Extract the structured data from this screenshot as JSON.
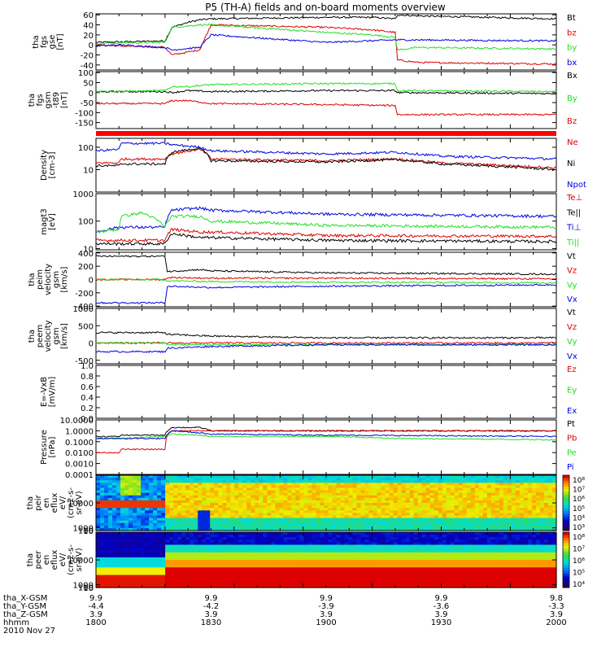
{
  "title": "P5 (TH-A) fields and on-board moments overview",
  "colors": {
    "black": "#000000",
    "red": "#e00000",
    "green": "#20e020",
    "blue": "#0000e0"
  },
  "chart_data": [
    {
      "type": "line",
      "id": "fgs",
      "ylabel": [
        "tha",
        "fgs",
        "gse",
        "[nT]"
      ],
      "ylim": [
        -50,
        62
      ],
      "yticks": [
        "60",
        "40",
        "20",
        "0",
        "-20",
        "-40"
      ],
      "ytickvals": [
        60,
        40,
        20,
        0,
        -20,
        -40
      ],
      "series": [
        {
          "name": "Bt",
          "color": "black",
          "x": [
            1800,
            1810,
            1830,
            1833,
            1840,
            1845,
            1850,
            1900,
            1920,
            1930,
            1931,
            1940,
            2000
          ],
          "y": [
            5,
            6,
            8,
            35,
            45,
            50,
            52,
            55,
            55,
            52,
            60,
            58,
            52
          ]
        },
        {
          "name": "bz",
          "color": "red",
          "x": [
            1800,
            1810,
            1830,
            1833,
            1845,
            1850,
            1900,
            1920,
            1930,
            1931,
            1940,
            2000
          ],
          "y": [
            0,
            -2,
            -5,
            -20,
            -10,
            40,
            35,
            30,
            25,
            -30,
            -35,
            -38
          ]
        },
        {
          "name": "by",
          "color": "green",
          "x": [
            1800,
            1810,
            1830,
            1833,
            1845,
            1850,
            1900,
            1920,
            1930,
            1931,
            1940,
            2000
          ],
          "y": [
            3,
            4,
            5,
            35,
            40,
            40,
            25,
            20,
            15,
            -10,
            -5,
            -8
          ]
        },
        {
          "name": "bx",
          "color": "blue",
          "x": [
            1800,
            1810,
            1830,
            1833,
            1845,
            1850,
            1900,
            1930,
            1940,
            2000
          ],
          "y": [
            -2,
            0,
            -5,
            -10,
            -5,
            20,
            5,
            10,
            10,
            8
          ]
        }
      ]
    },
    {
      "type": "line",
      "id": "fgs_gsm",
      "ylabel": [
        "tha",
        "fgs",
        "gsm",
        "-t89",
        "[nT]"
      ],
      "ylim": [
        -180,
        105
      ],
      "yticks": [
        "100",
        "50",
        "0",
        "-50",
        "-100",
        "-150"
      ],
      "ytickvals": [
        100,
        50,
        0,
        -50,
        -100,
        -150
      ],
      "series": [
        {
          "name": "Bx",
          "color": "black",
          "x": [
            1800,
            1830,
            1833,
            1840,
            1850,
            1900,
            1930,
            1931,
            2000
          ],
          "y": [
            5,
            5,
            0,
            10,
            5,
            10,
            10,
            0,
            -5
          ]
        },
        {
          "name": "By",
          "color": "green",
          "x": [
            1800,
            1830,
            1833,
            1840,
            1850,
            1900,
            1930,
            1931,
            2000
          ],
          "y": [
            5,
            10,
            30,
            30,
            40,
            45,
            45,
            10,
            5
          ]
        },
        {
          "name": "Bz",
          "color": "red",
          "x": [
            1800,
            1830,
            1833,
            1840,
            1850,
            1900,
            1930,
            1931,
            2000
          ],
          "y": [
            -55,
            -55,
            -40,
            -40,
            -55,
            -60,
            -65,
            -110,
            -110
          ]
        }
      ]
    },
    {
      "type": "line",
      "id": "density",
      "log": true,
      "ylabel": [
        "Density",
        "[cm-3]"
      ],
      "ylim": [
        1,
        250
      ],
      "yticks": [
        "100",
        "10"
      ],
      "ytickvals": [
        100,
        10
      ],
      "series": [
        {
          "name": "Ne",
          "color": "red",
          "x": [
            1800,
            1810,
            1811,
            1830,
            1833,
            1845,
            1850,
            1900,
            1930,
            1950,
            2000
          ],
          "y": [
            20,
            20,
            30,
            30,
            50,
            80,
            30,
            25,
            30,
            20,
            12
          ]
        },
        {
          "name": "Ni",
          "color": "black",
          "x": [
            1800,
            1810,
            1811,
            1830,
            1833,
            1845,
            1850,
            1900,
            1930,
            1950,
            2000
          ],
          "y": [
            15,
            15,
            18,
            18,
            60,
            90,
            25,
            22,
            28,
            18,
            10
          ]
        },
        {
          "name": "Npot",
          "color": "blue",
          "x": [
            1800,
            1810,
            1811,
            1830,
            1833,
            1845,
            1850,
            1900,
            1930,
            1950,
            2000
          ],
          "y": [
            70,
            80,
            150,
            150,
            130,
            100,
            70,
            50,
            60,
            40,
            30
          ]
        }
      ]
    },
    {
      "type": "line",
      "id": "temperature",
      "log": true,
      "ylabel": [
        "magt3",
        "[eV]"
      ],
      "ylim": [
        9,
        1000
      ],
      "yticks": [
        "1000",
        "100",
        "10"
      ],
      "ytickvals": [
        1000,
        100,
        10
      ],
      "series": [
        {
          "name": "Te⊥",
          "color": "red",
          "x": [
            1800,
            1810,
            1830,
            1833,
            1845,
            1850,
            1900,
            2000
          ],
          "y": [
            20,
            20,
            20,
            50,
            40,
            40,
            30,
            28
          ]
        },
        {
          "name": "Te||",
          "color": "black",
          "x": [
            1800,
            1810,
            1830,
            1833,
            1845,
            1850,
            1900,
            2000
          ],
          "y": [
            15,
            15,
            15,
            35,
            25,
            25,
            20,
            18
          ]
        },
        {
          "name": "Ti⊥",
          "color": "blue",
          "x": [
            1800,
            1810,
            1830,
            1833,
            1845,
            1850,
            1900,
            2000
          ],
          "y": [
            40,
            60,
            60,
            250,
            300,
            250,
            180,
            150
          ]
        },
        {
          "name": "Ti||",
          "color": "green",
          "x": [
            1800,
            1810,
            1811,
            1820,
            1830,
            1833,
            1845,
            1850,
            1900,
            2000
          ],
          "y": [
            40,
            50,
            150,
            200,
            60,
            150,
            150,
            100,
            70,
            60
          ]
        }
      ]
    },
    {
      "type": "line",
      "id": "peim_velocity",
      "ylabel": [
        "tha",
        "peim",
        "velocity",
        "gsm",
        "[km/s]"
      ],
      "ylim": [
        -410,
        410
      ],
      "yticks": [
        "400",
        "200",
        "0",
        "-200",
        "-400"
      ],
      "ytickvals": [
        400,
        200,
        0,
        -200,
        -400
      ],
      "series": [
        {
          "name": "Vt",
          "color": "black",
          "x": [
            1800,
            1830,
            1831,
            1845,
            1850,
            1900,
            2000
          ],
          "y": [
            350,
            350,
            120,
            150,
            130,
            100,
            80
          ]
        },
        {
          "name": "Vz",
          "color": "red",
          "x": [
            1800,
            1830,
            1831,
            1850,
            1900,
            2000
          ],
          "y": [
            0,
            0,
            30,
            20,
            20,
            10
          ]
        },
        {
          "name": "Vy",
          "color": "green",
          "x": [
            1800,
            1830,
            1831,
            1850,
            1900,
            2000
          ],
          "y": [
            0,
            0,
            -20,
            -30,
            -40,
            -50
          ]
        },
        {
          "name": "Vx",
          "color": "blue",
          "x": [
            1800,
            1830,
            1831,
            1850,
            1900,
            2000
          ],
          "y": [
            -350,
            -350,
            -100,
            -120,
            -100,
            -80
          ]
        }
      ]
    },
    {
      "type": "line",
      "id": "peem_velocity",
      "ylabel": [
        "tha",
        "peem",
        "velocity",
        "gsm",
        "[km/s]"
      ],
      "ylim": [
        -600,
        1000
      ],
      "yticks": [
        "1000",
        "500",
        "0",
        "-500"
      ],
      "ytickvals": [
        1000,
        500,
        0,
        -500
      ],
      "series": [
        {
          "name": "Vt",
          "color": "black",
          "x": [
            1800,
            1830,
            1831,
            1850,
            1900,
            2000
          ],
          "y": [
            300,
            300,
            250,
            200,
            150,
            150
          ]
        },
        {
          "name": "Vz",
          "color": "red",
          "x": [
            1800,
            1830,
            1831,
            2000
          ],
          "y": [
            0,
            0,
            0,
            0
          ]
        },
        {
          "name": "Vy",
          "color": "green",
          "x": [
            1800,
            1830,
            1831,
            2000
          ],
          "y": [
            0,
            0,
            -50,
            -50
          ]
        },
        {
          "name": "Vx",
          "color": "blue",
          "x": [
            1800,
            1830,
            1831,
            1850,
            1900,
            2000
          ],
          "y": [
            -250,
            -250,
            -150,
            -100,
            -50,
            -50
          ]
        }
      ]
    },
    {
      "type": "line",
      "id": "efield",
      "ylabel": [
        "E=-VxB",
        "[mV/m]"
      ],
      "ylim": [
        0,
        1
      ],
      "yticks": [
        "1.0",
        "0.8",
        "0.6",
        "0.4",
        "0.2",
        "0.0"
      ],
      "ytickvals": [
        1,
        0.8,
        0.6,
        0.4,
        0.2,
        0
      ],
      "series": [
        {
          "name": "Ez",
          "color": "red",
          "x": [],
          "y": []
        },
        {
          "name": "Ey",
          "color": "green",
          "x": [],
          "y": []
        },
        {
          "name": "Ex",
          "color": "blue",
          "x": [],
          "y": []
        }
      ]
    },
    {
      "type": "line",
      "id": "pressure",
      "log": true,
      "ylabel": [
        "Pressure",
        "[nPa]"
      ],
      "ylim": [
        0.0001,
        10
      ],
      "yticks": [
        "10.0000",
        "1.0000",
        "0.1000",
        "0.0100",
        "0.0010",
        "0.0001"
      ],
      "ytickvals": [
        10,
        1,
        0.1,
        0.01,
        0.001,
        0.0001
      ],
      "series": [
        {
          "name": "Pt",
          "color": "black",
          "x": [
            1800,
            1810,
            1811,
            1830,
            1833,
            1845,
            1850,
            1900,
            1930,
            2000
          ],
          "y": [
            0.3,
            0.3,
            0.4,
            0.4,
            2,
            2,
            1,
            1,
            1,
            1
          ]
        },
        {
          "name": "Pb",
          "color": "red",
          "x": [
            1800,
            1810,
            1811,
            1830,
            1833,
            1845,
            1850,
            1900,
            1930,
            2000
          ],
          "y": [
            0.01,
            0.01,
            0.02,
            0.02,
            1,
            1,
            1,
            1,
            1,
            1
          ]
        },
        {
          "name": "Pe",
          "color": "green",
          "x": [
            1800,
            1810,
            1811,
            1830,
            1833,
            1845,
            1850,
            1900,
            1930,
            2000
          ],
          "y": [
            0.2,
            0.2,
            0.2,
            0.3,
            0.5,
            0.4,
            0.3,
            0.3,
            0.2,
            0.15
          ]
        },
        {
          "name": "Pi",
          "color": "blue",
          "x": [
            1800,
            1830,
            1833,
            1850,
            1900,
            2000
          ],
          "y": [
            0.2,
            0.2,
            1,
            0.5,
            0.4,
            0.3
          ]
        }
      ]
    },
    {
      "type": "heatmap",
      "id": "peir",
      "ylabel": [
        "tha",
        "peir",
        "en",
        "eflux",
        "eV/",
        "(cm2-s-",
        "sr-eV)"
      ],
      "ylim": [
        10,
        20000
      ],
      "yticks": [
        "10000",
        "1000",
        "100",
        "10"
      ],
      "ytickvals": [
        10000,
        1000,
        100,
        10
      ],
      "colorbar": {
        "ticks": [
          "10⁸",
          "10⁷",
          "10⁶",
          "10⁵",
          "10⁴",
          "10³"
        ]
      }
    },
    {
      "type": "heatmap",
      "id": "peer",
      "ylabel": [
        "tha",
        "peer",
        "en",
        "eflux",
        "eV/",
        "(cm2-s-",
        "sr-eV)"
      ],
      "ylim": [
        10,
        20000
      ],
      "yticks": [
        "10000",
        "1000",
        "100",
        "10"
      ],
      "ytickvals": [
        10000,
        1000,
        100,
        10
      ],
      "colorbar": {
        "ticks": [
          "10⁸",
          "10⁷",
          "10⁶",
          "10⁵",
          "10⁴"
        ]
      }
    }
  ],
  "xaxis": {
    "xlim": [
      1800,
      2000
    ],
    "rows": [
      {
        "label": "tha_X-GSM",
        "values": [
          "9.9",
          "9.9",
          "9.9",
          "9.9",
          "9.8"
        ]
      },
      {
        "label": "tha_Y-GSM",
        "values": [
          "-4.4",
          "-4.2",
          "-3.9",
          "-3.6",
          "-3.3"
        ]
      },
      {
        "label": "tha_Z-GSM",
        "values": [
          "3.9",
          "3.9",
          "3.9",
          "3.9",
          "3.9"
        ]
      },
      {
        "label": "hhmm",
        "values": [
          "1800",
          "1830",
          "1900",
          "1930",
          "2000"
        ]
      }
    ],
    "date": "2010 Nov 27"
  }
}
